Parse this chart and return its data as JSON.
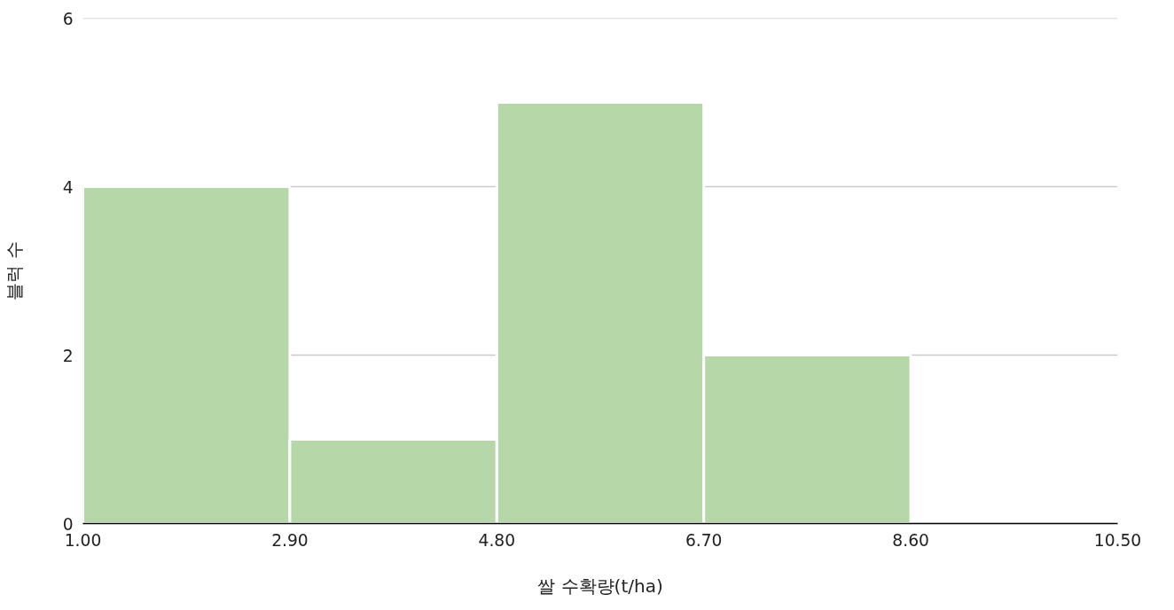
{
  "chart_data": {
    "type": "histogram",
    "xlabel": "쌀 수확량(t/ha)",
    "ylabel": "블럭 수",
    "bins": [
      1.0,
      2.9,
      4.8,
      6.7,
      8.6,
      10.5
    ],
    "values": [
      4,
      1,
      5,
      2,
      0
    ],
    "color": "#b6d7a8",
    "xlim": [
      1.0,
      10.5
    ],
    "xticks": [
      {
        "value": 1.0,
        "label": "1.00"
      },
      {
        "value": 2.9,
        "label": "2.90"
      },
      {
        "value": 4.8,
        "label": "4.80"
      },
      {
        "value": 6.7,
        "label": "6.70"
      },
      {
        "value": 8.6,
        "label": "8.60"
      },
      {
        "value": 10.5,
        "label": "10.50"
      }
    ],
    "ylim": [
      0,
      6
    ],
    "yticks": [
      0,
      2,
      4,
      6
    ],
    "grid": "y"
  }
}
